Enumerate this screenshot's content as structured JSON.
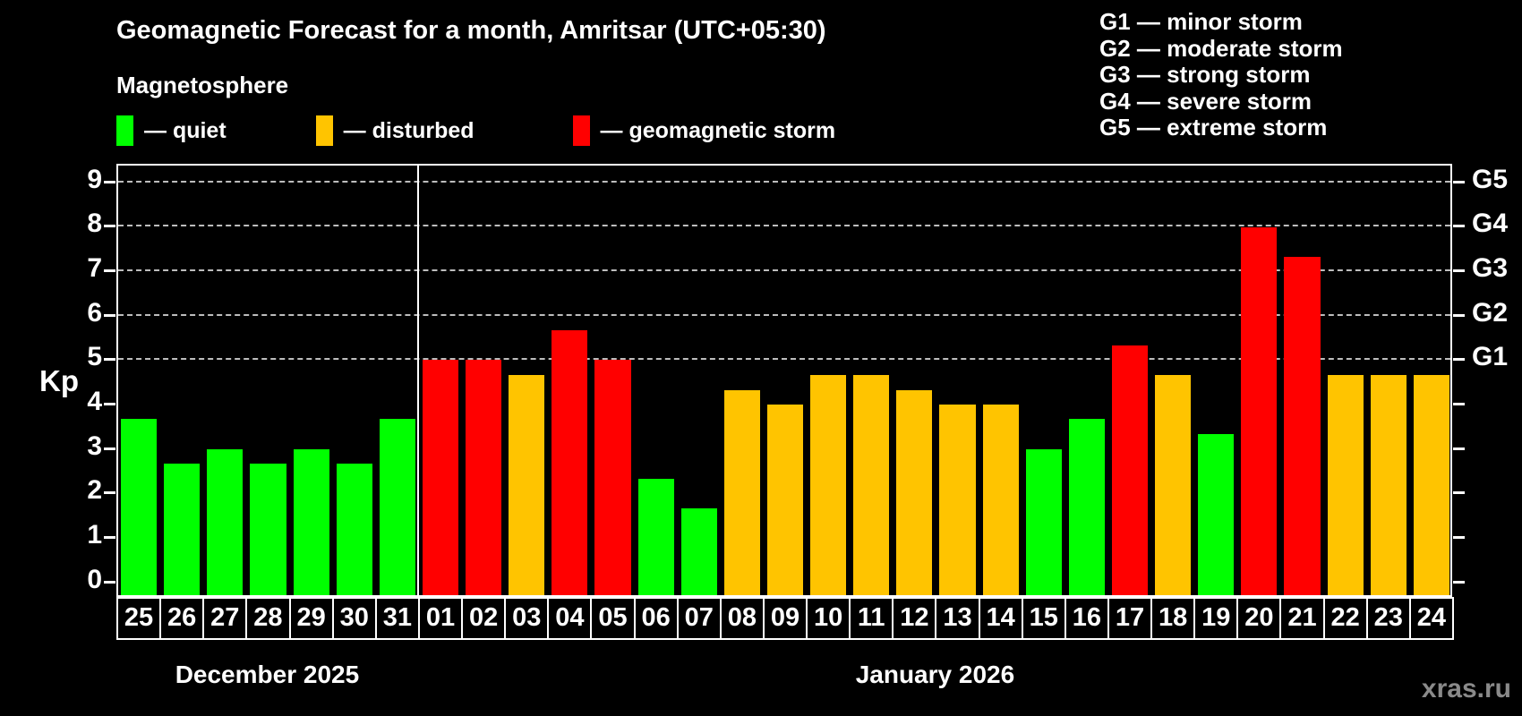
{
  "title": "Geomagnetic Forecast for a month, Amritsar (UTC+05:30)",
  "subtitle": "Magnetosphere",
  "watermark": "xras.ru",
  "axis": {
    "y_label": "Kp"
  },
  "legend": {
    "items": [
      {
        "key": "quiet",
        "label": "— quiet",
        "color": "#00ff00"
      },
      {
        "key": "disturbed",
        "label": "— disturbed",
        "color": "#ffc400"
      },
      {
        "key": "storm",
        "label": "— geomagnetic storm",
        "color": "#ff0000"
      }
    ]
  },
  "g_legend": {
    "items": [
      "G1 — minor storm",
      "G2 — moderate storm",
      "G3 — strong storm",
      "G4 — severe storm",
      "G5 — extreme storm"
    ]
  },
  "chart_data": {
    "type": "bar",
    "title": "Geomagnetic Forecast for a month, Amritsar (UTC+05:30)",
    "xlabel": "",
    "ylabel": "Kp",
    "ylim": [
      0,
      9.4
    ],
    "y_ticks": [
      0,
      1,
      2,
      3,
      4,
      5,
      6,
      7,
      8,
      9
    ],
    "gridlines_at": [
      5,
      6,
      7,
      8,
      9
    ],
    "grid": "horizontal dashed lines only at Kp 5-9",
    "legend_position": "top-left",
    "right_axis_labels": [
      {
        "label": "G1",
        "kp": 5
      },
      {
        "label": "G2",
        "kp": 6
      },
      {
        "label": "G3",
        "kp": 7
      },
      {
        "label": "G4",
        "kp": 8
      },
      {
        "label": "G5",
        "kp": 9
      }
    ],
    "months": [
      {
        "label": "December 2025",
        "days": 7
      },
      {
        "label": "January 2026",
        "days": 24
      }
    ],
    "categories": [
      "25",
      "26",
      "27",
      "28",
      "29",
      "30",
      "31",
      "01",
      "02",
      "03",
      "04",
      "05",
      "06",
      "07",
      "08",
      "09",
      "10",
      "11",
      "12",
      "13",
      "14",
      "15",
      "16",
      "17",
      "18",
      "19",
      "20",
      "21",
      "22",
      "23",
      "24"
    ],
    "values": [
      3.67,
      2.67,
      3.0,
      2.67,
      3.0,
      2.67,
      3.67,
      5.0,
      5.0,
      4.67,
      5.67,
      5.0,
      2.33,
      1.67,
      4.33,
      4.0,
      4.67,
      4.67,
      4.33,
      4.0,
      4.0,
      3.0,
      3.67,
      5.33,
      4.67,
      3.33,
      8.0,
      7.33,
      4.67,
      4.67,
      4.67
    ],
    "statuses": [
      "quiet",
      "quiet",
      "quiet",
      "quiet",
      "quiet",
      "quiet",
      "quiet",
      "storm",
      "storm",
      "disturbed",
      "storm",
      "storm",
      "quiet",
      "quiet",
      "disturbed",
      "disturbed",
      "disturbed",
      "disturbed",
      "disturbed",
      "disturbed",
      "disturbed",
      "quiet",
      "quiet",
      "storm",
      "disturbed",
      "quiet",
      "storm",
      "storm",
      "disturbed",
      "disturbed",
      "disturbed"
    ],
    "colors_by_status": {
      "quiet": "#00ff00",
      "disturbed": "#ffc400",
      "storm": "#ff0000"
    }
  }
}
